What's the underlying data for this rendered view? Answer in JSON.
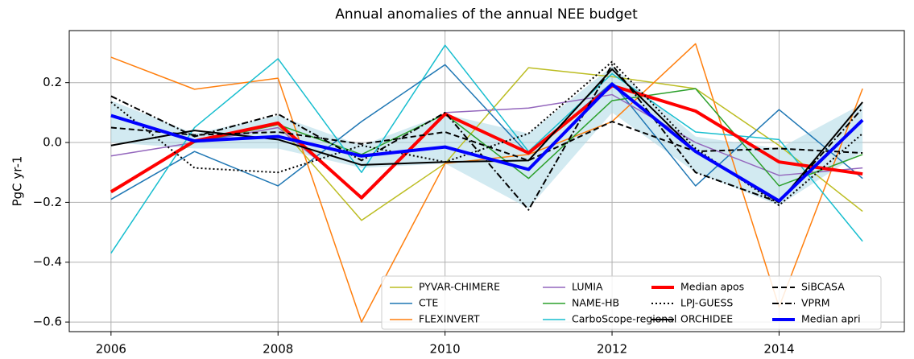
{
  "chart_data": {
    "type": "line",
    "title": "Annual anomalies of the annual NEE budget",
    "y_label": "PgC yr-1",
    "x": [
      2006,
      2007,
      2008,
      2009,
      2010,
      2011,
      2012,
      2013,
      2014,
      2015
    ],
    "xlim": [
      2005.5,
      2015.5
    ],
    "xticks": [
      2006,
      2008,
      2010,
      2012,
      2014
    ],
    "ylim": [
      -0.632,
      0.374
    ],
    "yticks": [
      {
        "value": -0.6,
        "label": "−0.6"
      },
      {
        "value": -0.4,
        "label": "−0.4"
      },
      {
        "value": -0.2,
        "label": "−0.2"
      },
      {
        "value": 0,
        "label": "0.0"
      },
      {
        "value": 0.2,
        "label": "0.2"
      }
    ],
    "grid": true,
    "legend_position": "lower right",
    "band": {
      "color": "#add8e6",
      "upper": [
        0.14,
        0.03,
        0.09,
        -0.01,
        0.095,
        0.03,
        0.255,
        0.02,
        -0.02,
        0.13
      ],
      "lower": [
        0.0,
        -0.02,
        -0.02,
        -0.085,
        -0.07,
        -0.22,
        0.1,
        -0.1,
        -0.21,
        -0.03
      ]
    },
    "series": [
      {
        "name": "PYVAR-CHIMERE",
        "color": "#bcbd22",
        "width": 1.5,
        "dash": "solid",
        "values": [
          -0.16,
          0.0,
          0.06,
          -0.26,
          -0.07,
          0.25,
          0.22,
          0.18,
          -0.01,
          -0.23
        ]
      },
      {
        "name": "CTE",
        "color": "#1f77b4",
        "width": 1.5,
        "dash": "solid",
        "values": [
          -0.19,
          -0.03,
          -0.145,
          0.07,
          0.26,
          -0.04,
          0.2,
          -0.145,
          0.11,
          -0.12
        ]
      },
      {
        "name": "FLEXINVERT",
        "color": "#ff7f0e",
        "width": 1.5,
        "dash": "solid",
        "values": [
          0.285,
          0.178,
          0.215,
          -0.6,
          -0.07,
          -0.04,
          0.07,
          0.33,
          -0.55,
          0.18
        ]
      },
      {
        "name": "LUMIA",
        "color": "#9467bd",
        "width": 1.5,
        "dash": "solid",
        "values": [
          -0.045,
          0.0,
          0.05,
          -0.18,
          0.1,
          0.115,
          0.16,
          0.0,
          -0.11,
          -0.085
        ]
      },
      {
        "name": "NAME-HB",
        "color": "#2ca02c",
        "width": 1.5,
        "dash": "solid",
        "values": [
          -0.165,
          0.0,
          0.06,
          -0.04,
          0.095,
          -0.12,
          0.14,
          0.18,
          -0.145,
          -0.04
        ]
      },
      {
        "name": "CarboScope-regional",
        "color": "#17becf",
        "width": 1.5,
        "dash": "solid",
        "values": [
          -0.37,
          0.05,
          0.28,
          -0.1,
          0.325,
          -0.03,
          0.23,
          0.035,
          0.01,
          -0.33
        ]
      },
      {
        "name": "Median apos",
        "color": "#ff0000",
        "width": 4,
        "dash": "solid",
        "values": [
          -0.165,
          0.005,
          0.065,
          -0.185,
          0.095,
          -0.035,
          0.19,
          0.105,
          -0.065,
          -0.105
        ]
      },
      {
        "name": "LPJ-GUESS",
        "color": "#000000",
        "width": 2,
        "dash": "dotted",
        "values": [
          0.135,
          -0.085,
          -0.1,
          -0.01,
          -0.065,
          0.03,
          0.27,
          -0.02,
          -0.21,
          0.03
        ]
      },
      {
        "name": "ORCHIDEE",
        "color": "#000000",
        "width": 2,
        "dash": "solid",
        "values": [
          -0.01,
          0.04,
          0.01,
          -0.075,
          -0.065,
          -0.06,
          0.245,
          -0.03,
          -0.2,
          0.135
        ]
      },
      {
        "name": "SiBCASA",
        "color": "#000000",
        "width": 2,
        "dash": "dashed",
        "values": [
          0.05,
          0.025,
          0.035,
          -0.005,
          0.035,
          -0.06,
          0.07,
          -0.03,
          -0.02,
          -0.035
        ]
      },
      {
        "name": "VPRM",
        "color": "#000000",
        "width": 2,
        "dash": "dashdot",
        "values": [
          0.155,
          0.02,
          0.095,
          -0.06,
          0.1,
          -0.225,
          0.26,
          -0.1,
          -0.2,
          0.115
        ]
      },
      {
        "name": "Median apri",
        "color": "#0000ff",
        "width": 4,
        "dash": "solid",
        "values": [
          0.09,
          0.005,
          0.02,
          -0.045,
          -0.015,
          -0.09,
          0.195,
          -0.03,
          -0.195,
          0.075
        ]
      }
    ]
  }
}
